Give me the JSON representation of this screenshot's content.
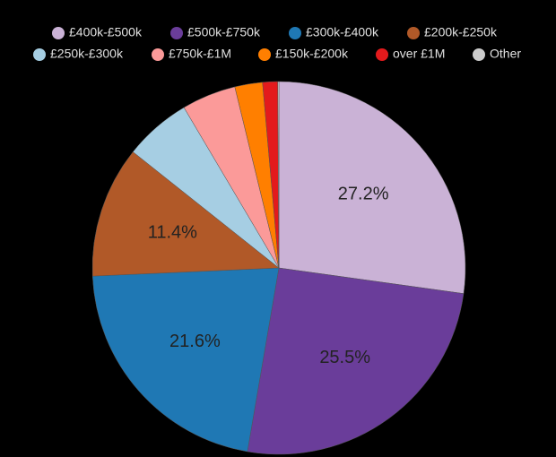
{
  "chart_data": {
    "type": "pie",
    "categories": [
      "£400k-£500k",
      "£500k-£750k",
      "£300k-£400k",
      "£200k-£250k",
      "£250k-£300k",
      "£750k-£1M",
      "£150k-£200k",
      "over £1M",
      "Other"
    ],
    "values": [
      27.2,
      25.5,
      21.6,
      11.4,
      5.8,
      4.7,
      2.4,
      1.3,
      0.1
    ],
    "value_labels": [
      "27.2%",
      "25.5%",
      "21.6%",
      "11.4%",
      null,
      null,
      null,
      null,
      null
    ],
    "colors": [
      "#cab2d6",
      "#6a3d9a",
      "#1f78b4",
      "#b15928",
      "#a6cee3",
      "#fb9a99",
      "#ff7f00",
      "#e31a1c",
      "#cccccc"
    ],
    "legend": "top"
  }
}
